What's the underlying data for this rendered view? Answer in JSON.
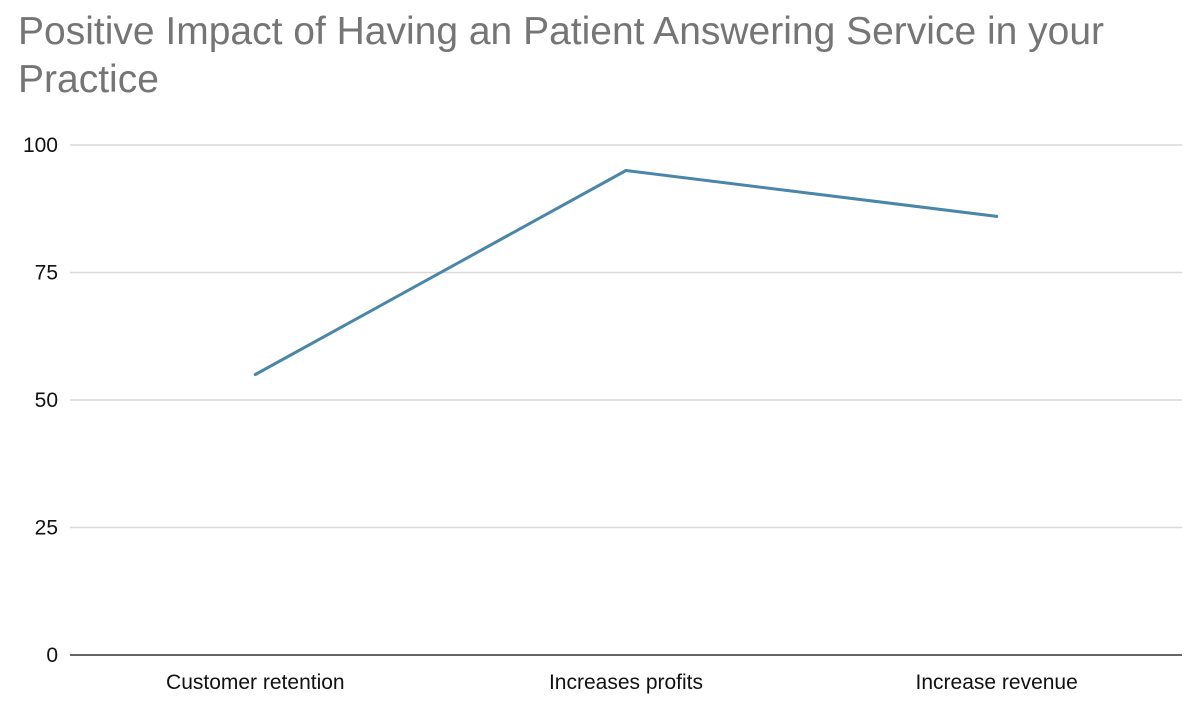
{
  "chart_data": {
    "type": "line",
    "title": "Positive Impact of Having an Patient Answering Service in your Practice",
    "xlabel": "",
    "ylabel": "",
    "categories": [
      "Customer retention",
      "Increases profits",
      "Increase revenue"
    ],
    "series": [
      {
        "values": [
          55,
          95,
          86
        ],
        "color": "#4a86a8"
      }
    ],
    "ylim": [
      0,
      100
    ],
    "yticks": [
      "0",
      "25",
      "50",
      "75",
      "100"
    ],
    "grid": true,
    "legend": "none"
  }
}
